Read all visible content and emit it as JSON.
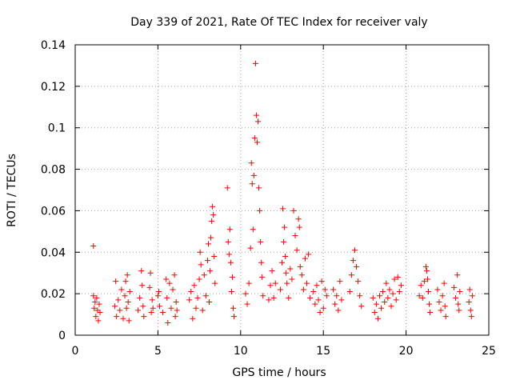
{
  "chart_data": {
    "type": "scatter",
    "title": "Day 339 of 2021, Rate Of TEC Index for receiver valy",
    "xlabel": "GPS time / hours",
    "ylabel": "ROTI / TECUs",
    "xlim": [
      0,
      25
    ],
    "ylim": [
      0,
      0.14
    ],
    "x_ticks": [
      0,
      5,
      10,
      15,
      20,
      25
    ],
    "x_tick_labels": [
      "0",
      "5",
      "10",
      "15",
      "20",
      "25"
    ],
    "y_ticks": [
      0,
      0.02,
      0.04,
      0.06,
      0.08,
      0.1,
      0.12,
      0.14
    ],
    "y_tick_labels": [
      "0",
      "0.02",
      "0.04",
      "0.06",
      "0.08",
      "0.1",
      "0.12",
      "0.14"
    ],
    "grid": true,
    "marker": "+",
    "series": [
      {
        "name": "ROTI",
        "color": "#ff0000",
        "points": [
          [
            1.1,
            0.043
          ],
          [
            1.1,
            0.019
          ],
          [
            1.15,
            0.013
          ],
          [
            1.2,
            0.016
          ],
          [
            1.25,
            0.009
          ],
          [
            1.3,
            0.018
          ],
          [
            1.35,
            0.012
          ],
          [
            1.4,
            0.007
          ],
          [
            1.45,
            0.015
          ],
          [
            1.5,
            0.011
          ],
          [
            2.4,
            0.014
          ],
          [
            2.45,
            0.026
          ],
          [
            2.5,
            0.009
          ],
          [
            2.6,
            0.017
          ],
          [
            2.7,
            0.012
          ],
          [
            2.8,
            0.022
          ],
          [
            2.9,
            0.008
          ],
          [
            3.0,
            0.019
          ],
          [
            3.05,
            0.026
          ],
          [
            3.1,
            0.013
          ],
          [
            3.15,
            0.029
          ],
          [
            3.2,
            0.016
          ],
          [
            3.25,
            0.007
          ],
          [
            3.3,
            0.021
          ],
          [
            3.8,
            0.012
          ],
          [
            3.9,
            0.018
          ],
          [
            4.0,
            0.031
          ],
          [
            4.05,
            0.024
          ],
          [
            4.1,
            0.014
          ],
          [
            4.15,
            0.009
          ],
          [
            4.5,
            0.023
          ],
          [
            4.55,
            0.03
          ],
          [
            4.6,
            0.011
          ],
          [
            4.65,
            0.017
          ],
          [
            4.7,
            0.013
          ],
          [
            5.0,
            0.019
          ],
          [
            5.05,
            0.021
          ],
          [
            5.1,
            0.014
          ],
          [
            5.3,
            0.011
          ],
          [
            5.5,
            0.027
          ],
          [
            5.55,
            0.018
          ],
          [
            5.6,
            0.006
          ],
          [
            5.7,
            0.025
          ],
          [
            5.8,
            0.013
          ],
          [
            5.9,
            0.022
          ],
          [
            6.0,
            0.029
          ],
          [
            6.05,
            0.009
          ],
          [
            6.1,
            0.016
          ],
          [
            6.15,
            0.012
          ],
          [
            6.9,
            0.017
          ],
          [
            7.0,
            0.021
          ],
          [
            7.1,
            0.008
          ],
          [
            7.2,
            0.024
          ],
          [
            7.3,
            0.013
          ],
          [
            7.4,
            0.018
          ],
          [
            7.5,
            0.027
          ],
          [
            7.55,
            0.04
          ],
          [
            7.6,
            0.034
          ],
          [
            7.7,
            0.012
          ],
          [
            7.8,
            0.029
          ],
          [
            7.9,
            0.019
          ],
          [
            8.0,
            0.036
          ],
          [
            8.05,
            0.044
          ],
          [
            8.1,
            0.016
          ],
          [
            8.15,
            0.031
          ],
          [
            8.2,
            0.047
          ],
          [
            8.25,
            0.055
          ],
          [
            8.3,
            0.062
          ],
          [
            8.35,
            0.058
          ],
          [
            8.4,
            0.038
          ],
          [
            8.45,
            0.025
          ],
          [
            9.2,
            0.071
          ],
          [
            9.25,
            0.045
          ],
          [
            9.3,
            0.039
          ],
          [
            9.35,
            0.051
          ],
          [
            9.4,
            0.035
          ],
          [
            9.45,
            0.021
          ],
          [
            9.5,
            0.028
          ],
          [
            9.55,
            0.013
          ],
          [
            9.6,
            0.009
          ],
          [
            10.3,
            0.02
          ],
          [
            10.4,
            0.015
          ],
          [
            10.5,
            0.025
          ],
          [
            10.6,
            0.042
          ],
          [
            10.65,
            0.083
          ],
          [
            10.7,
            0.073
          ],
          [
            10.75,
            0.051
          ],
          [
            10.8,
            0.077
          ],
          [
            10.85,
            0.095
          ],
          [
            10.9,
            0.131
          ],
          [
            10.95,
            0.106
          ],
          [
            11.0,
            0.093
          ],
          [
            11.05,
            0.103
          ],
          [
            11.1,
            0.071
          ],
          [
            11.15,
            0.06
          ],
          [
            11.2,
            0.045
          ],
          [
            11.25,
            0.035
          ],
          [
            11.3,
            0.028
          ],
          [
            11.35,
            0.019
          ],
          [
            11.7,
            0.017
          ],
          [
            11.8,
            0.024
          ],
          [
            11.9,
            0.031
          ],
          [
            12.0,
            0.018
          ],
          [
            12.1,
            0.025
          ],
          [
            12.4,
            0.022
          ],
          [
            12.5,
            0.035
          ],
          [
            12.55,
            0.061
          ],
          [
            12.6,
            0.045
          ],
          [
            12.65,
            0.052
          ],
          [
            12.7,
            0.038
          ],
          [
            12.75,
            0.03
          ],
          [
            12.8,
            0.025
          ],
          [
            12.9,
            0.018
          ],
          [
            13.0,
            0.032
          ],
          [
            13.1,
            0.027
          ],
          [
            13.2,
            0.06
          ],
          [
            13.3,
            0.048
          ],
          [
            13.4,
            0.041
          ],
          [
            13.5,
            0.056
          ],
          [
            13.55,
            0.052
          ],
          [
            13.6,
            0.033
          ],
          [
            13.7,
            0.029
          ],
          [
            13.8,
            0.022
          ],
          [
            13.9,
            0.037
          ],
          [
            14.0,
            0.025
          ],
          [
            14.1,
            0.039
          ],
          [
            14.2,
            0.018
          ],
          [
            14.4,
            0.021
          ],
          [
            14.5,
            0.015
          ],
          [
            14.6,
            0.024
          ],
          [
            14.7,
            0.017
          ],
          [
            14.8,
            0.011
          ],
          [
            14.9,
            0.026
          ],
          [
            15.0,
            0.013
          ],
          [
            15.1,
            0.022
          ],
          [
            15.2,
            0.019
          ],
          [
            15.6,
            0.022
          ],
          [
            15.7,
            0.015
          ],
          [
            15.8,
            0.019
          ],
          [
            15.9,
            0.012
          ],
          [
            16.0,
            0.026
          ],
          [
            16.1,
            0.017
          ],
          [
            16.6,
            0.021
          ],
          [
            16.7,
            0.029
          ],
          [
            16.8,
            0.036
          ],
          [
            16.9,
            0.041
          ],
          [
            17.0,
            0.033
          ],
          [
            17.1,
            0.026
          ],
          [
            17.2,
            0.019
          ],
          [
            17.3,
            0.014
          ],
          [
            18.0,
            0.018
          ],
          [
            18.1,
            0.011
          ],
          [
            18.2,
            0.015
          ],
          [
            18.3,
            0.008
          ],
          [
            18.4,
            0.019
          ],
          [
            18.5,
            0.013
          ],
          [
            18.6,
            0.021
          ],
          [
            18.7,
            0.016
          ],
          [
            18.8,
            0.025
          ],
          [
            18.9,
            0.018
          ],
          [
            19.0,
            0.022
          ],
          [
            19.1,
            0.014
          ],
          [
            19.2,
            0.02
          ],
          [
            19.3,
            0.027
          ],
          [
            19.4,
            0.017
          ],
          [
            19.5,
            0.028
          ],
          [
            19.6,
            0.021
          ],
          [
            19.7,
            0.024
          ],
          [
            20.8,
            0.019
          ],
          [
            20.9,
            0.024
          ],
          [
            21.0,
            0.018
          ],
          [
            21.1,
            0.026
          ],
          [
            21.2,
            0.033
          ],
          [
            21.25,
            0.031
          ],
          [
            21.3,
            0.027
          ],
          [
            21.35,
            0.021
          ],
          [
            21.4,
            0.015
          ],
          [
            21.45,
            0.011
          ],
          [
            21.9,
            0.022
          ],
          [
            22.0,
            0.016
          ],
          [
            22.1,
            0.012
          ],
          [
            22.2,
            0.019
          ],
          [
            22.3,
            0.025
          ],
          [
            22.35,
            0.014
          ],
          [
            22.4,
            0.009
          ],
          [
            22.9,
            0.023
          ],
          [
            23.0,
            0.018
          ],
          [
            23.1,
            0.029
          ],
          [
            23.15,
            0.015
          ],
          [
            23.2,
            0.012
          ],
          [
            23.25,
            0.021
          ],
          [
            23.8,
            0.016
          ],
          [
            23.85,
            0.022
          ],
          [
            23.9,
            0.012
          ],
          [
            23.95,
            0.009
          ],
          [
            24.0,
            0.019
          ]
        ]
      }
    ]
  }
}
